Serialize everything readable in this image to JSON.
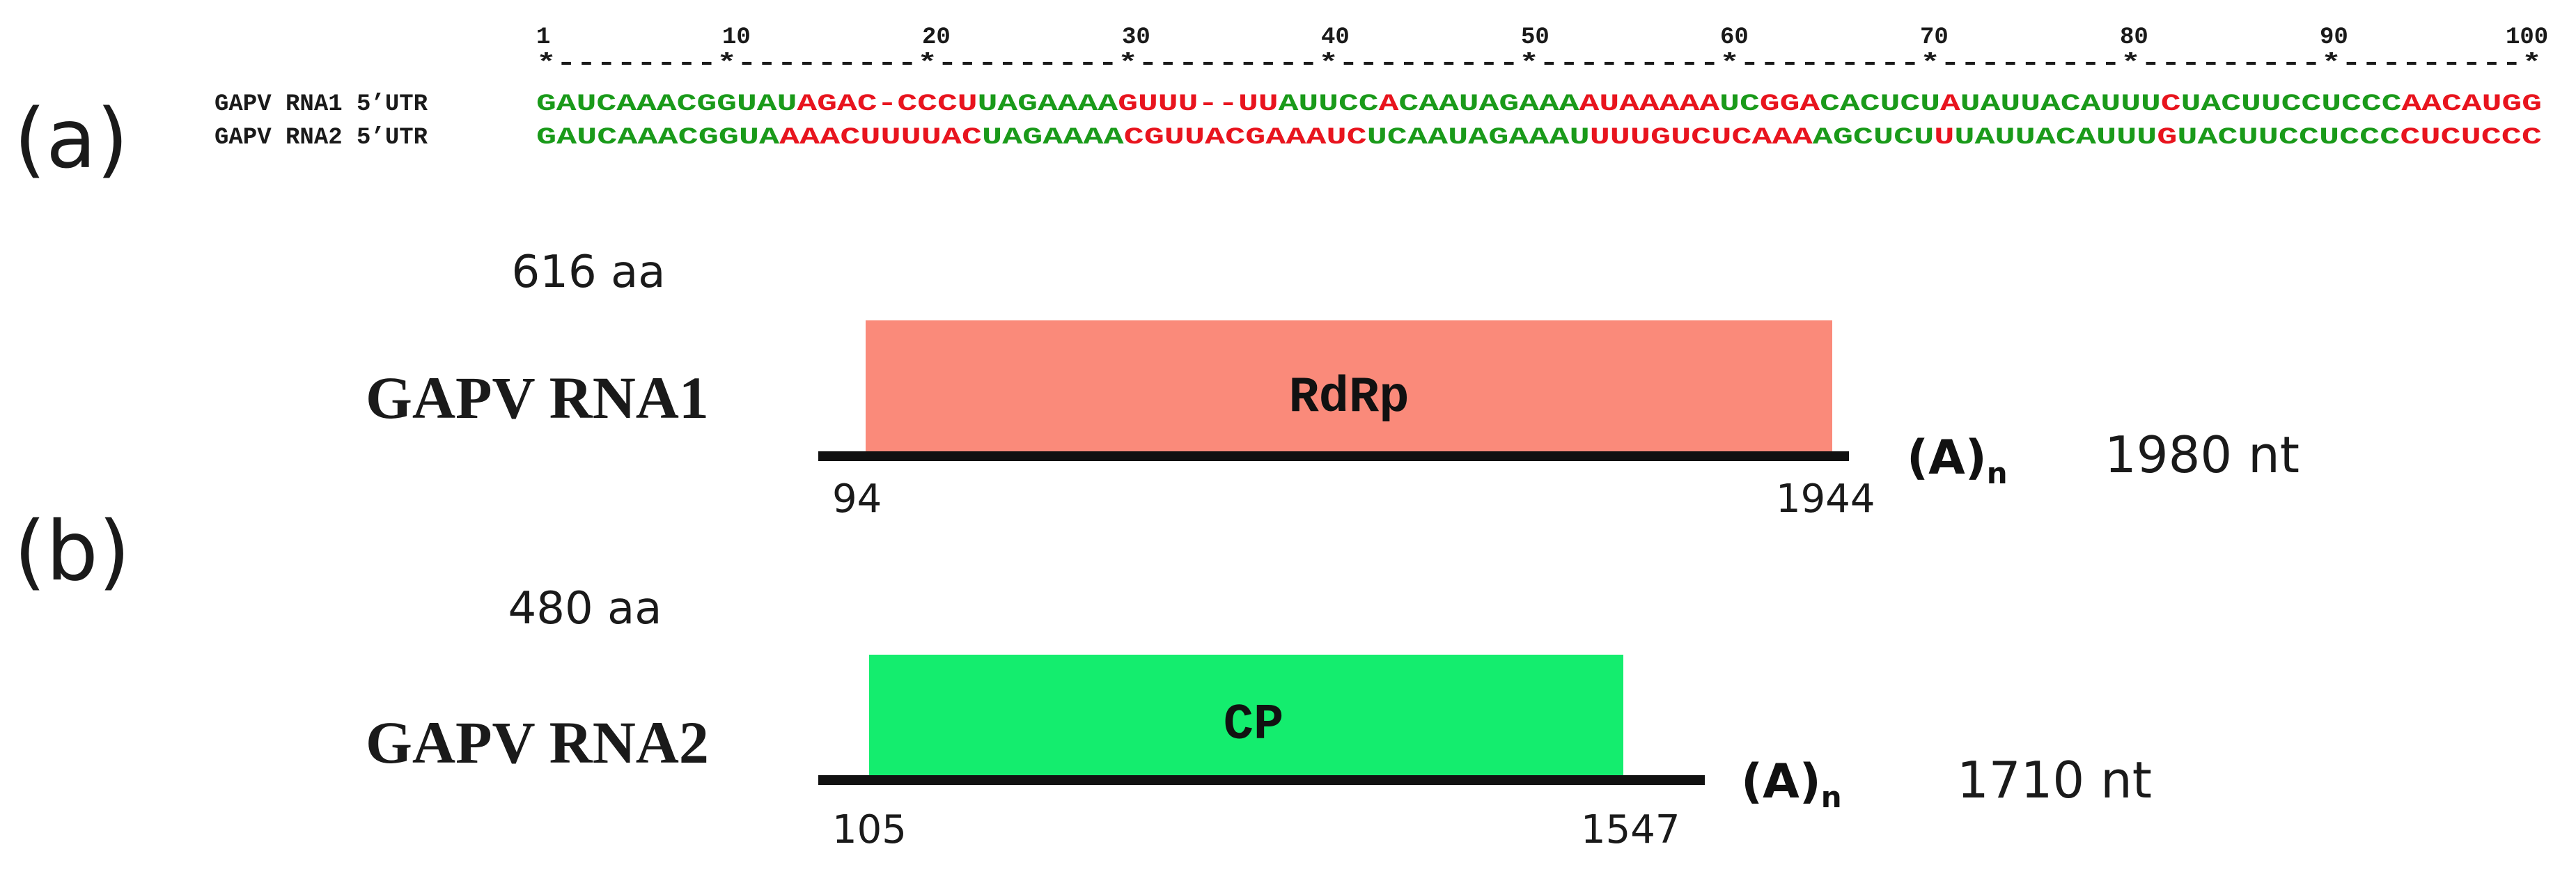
{
  "panel_labels": {
    "a": "(a)",
    "b": "(b)"
  },
  "ruler": {
    "numbers": [
      "1",
      "10",
      "20",
      "30",
      "40",
      "50",
      "60",
      "70",
      "80",
      "90",
      "100"
    ],
    "line": "*--------*---------*---------*---------*---------*---------*---------*---------*---------*---------*"
  },
  "alignment": {
    "rows": [
      {
        "label": "GAPV RNA1 5’UTR",
        "segments": [
          {
            "text": "GAUCAAACGGUAU",
            "match": true
          },
          {
            "text": "AGAC-CCCU",
            "match": false
          },
          {
            "text": "UAGAAAA",
            "match": true
          },
          {
            "text": "GUUU--UU",
            "match": false
          },
          {
            "text": "AUUCC",
            "match": true
          },
          {
            "text": "A",
            "match": false
          },
          {
            "text": "CAAUAGAAA",
            "match": true
          },
          {
            "text": "AUAAAAA",
            "match": false
          },
          {
            "text": "UC",
            "match": true
          },
          {
            "text": "GGA",
            "match": false
          },
          {
            "text": "CA",
            "match": true
          },
          {
            "text": "CUCU",
            "match": true
          },
          {
            "text": "A",
            "match": false
          },
          {
            "text": "UAUUACAUUU",
            "match": true
          },
          {
            "text": "C",
            "match": false
          },
          {
            "text": "UACUUCCUCCC",
            "match": true
          },
          {
            "text": "AACAUGG",
            "match": false
          }
        ]
      },
      {
        "label": "GAPV RNA2 5’UTR",
        "segments": [
          {
            "text": "GAUCAAACGGUA",
            "match": true
          },
          {
            "text": "AAACUUUUAC",
            "match": false
          },
          {
            "text": "UAGAAAA",
            "match": true
          },
          {
            "text": "CGUUACGA",
            "match": false
          },
          {
            "text": "AAUC",
            "match": false
          },
          {
            "text": "U",
            "match": true
          },
          {
            "text": "CAAUAGAAAU",
            "match": true
          },
          {
            "text": "UUUGUCUC",
            "match": false
          },
          {
            "text": "AAA",
            "match": false
          },
          {
            "text": "AGCUCU",
            "match": true
          },
          {
            "text": "U",
            "match": false
          },
          {
            "text": "UAUUACAUUU",
            "match": true
          },
          {
            "text": "G",
            "match": false
          },
          {
            "text": "UACUUCCUCCC",
            "match": true
          },
          {
            "text": "CUCUCCC",
            "match": false
          }
        ]
      }
    ]
  },
  "genomes": [
    {
      "name": "GAPV RNA1",
      "protein": "RdRp",
      "protein_length": "616 aa",
      "orf_start": "94",
      "orf_end": "1944",
      "poly_a": "(A)",
      "poly_a_sub": "n",
      "total_length": "1980 nt",
      "box_color": "#fa8a7a"
    },
    {
      "name": "GAPV RNA2",
      "protein": "CP",
      "protein_length": "480 aa",
      "orf_start": "105",
      "orf_end": "1547",
      "poly_a": "(A)",
      "poly_a_sub": "n",
      "total_length": "1710 nt",
      "box_color": "#14ed6e"
    }
  ],
  "colors": {
    "match": "#1a9a1a",
    "mismatch": "#e8141e",
    "text": "#1a1a1a",
    "line": "#111111"
  }
}
